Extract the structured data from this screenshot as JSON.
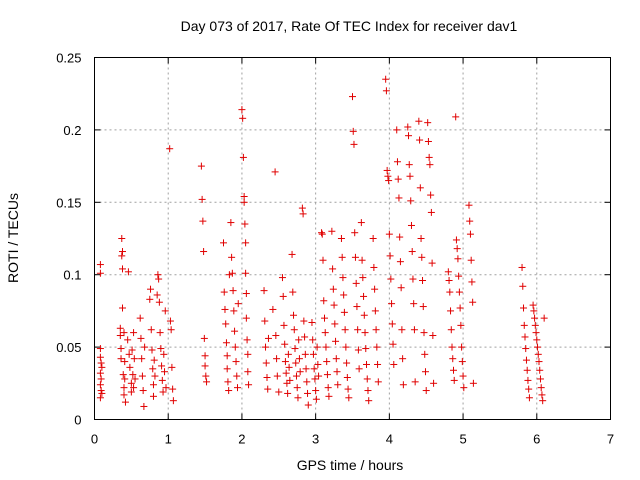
{
  "chart_data": {
    "type": "scatter",
    "title": "Day 073 of 2017, Rate Of TEC Index for receiver dav1",
    "xlabel": "GPS time / hours",
    "ylabel": "ROTI / TECUs",
    "xlim": [
      0,
      7
    ],
    "ylim": [
      0,
      0.25
    ],
    "xticks": [
      "0",
      "1",
      "2",
      "3",
      "4",
      "5",
      "6",
      "7"
    ],
    "yticks": [
      "0",
      "0.05",
      "0.1",
      "0.15",
      "0.2",
      "0.25"
    ],
    "grid": true,
    "marker": "plus",
    "color": "#e00000",
    "series": [
      {
        "x": [
          0.08,
          0.08,
          0.08,
          0.08,
          0.08,
          0.08,
          0.08,
          0.09,
          0.09,
          0.09,
          0.1,
          0.1,
          0.35,
          0.35,
          0.36,
          0.36,
          0.37,
          0.37,
          0.38,
          0.38,
          0.38,
          0.39,
          0.4,
          0.4,
          0.4,
          0.41,
          0.41,
          0.42,
          0.45,
          0.46,
          0.47,
          0.48,
          0.5,
          0.5,
          0.51,
          0.52,
          0.53,
          0.53,
          0.54,
          0.55,
          0.62,
          0.63,
          0.64,
          0.65,
          0.66,
          0.67,
          0.68,
          0.75,
          0.76,
          0.77,
          0.78,
          0.79,
          0.8,
          0.8,
          0.81,
          0.82,
          0.85,
          0.86,
          0.87,
          0.88,
          0.89,
          0.9,
          0.91,
          0.92,
          0.93,
          0.94,
          0.95,
          0.96,
          0.97,
          1.02,
          1.03,
          1.04,
          1.05,
          1.06,
          1.07,
          1.45,
          1.46,
          1.47,
          1.48,
          1.49,
          1.5,
          1.5,
          1.51,
          1.52,
          1.75,
          1.76,
          1.77,
          1.78,
          1.79,
          1.8,
          1.8,
          1.81,
          1.82,
          1.83,
          1.85,
          1.86,
          1.87,
          1.88,
          1.89,
          1.9,
          1.91,
          1.92,
          1.93,
          1.94,
          1.95,
          2.0,
          2.01,
          2.02,
          2.03,
          2.03,
          2.04,
          2.05,
          2.05,
          2.06,
          2.06,
          2.07,
          2.08,
          2.08,
          2.09,
          2.3,
          2.31,
          2.32,
          2.33,
          2.34,
          2.35,
          2.36,
          2.42,
          2.45,
          2.46,
          2.47,
          2.48,
          2.5,
          2.55,
          2.56,
          2.57,
          2.58,
          2.59,
          2.6,
          2.61,
          2.62,
          2.63,
          2.64,
          2.65,
          2.68,
          2.69,
          2.7,
          2.71,
          2.72,
          2.73,
          2.74,
          2.75,
          2.76,
          2.77,
          2.78,
          2.79,
          2.82,
          2.83,
          2.84,
          2.85,
          2.86,
          2.87,
          2.88,
          2.89,
          2.9,
          2.95,
          2.96,
          2.97,
          2.98,
          2.99,
          3.0,
          3.01,
          3.02,
          3.03,
          3.04,
          3.08,
          3.09,
          3.1,
          3.11,
          3.12,
          3.13,
          3.14,
          3.15,
          3.16,
          3.17,
          3.18,
          3.22,
          3.23,
          3.24,
          3.25,
          3.26,
          3.27,
          3.28,
          3.29,
          3.3,
          3.35,
          3.36,
          3.37,
          3.38,
          3.39,
          3.4,
          3.41,
          3.42,
          3.43,
          3.44,
          3.45,
          3.5,
          3.51,
          3.52,
          3.53,
          3.54,
          3.55,
          3.56,
          3.57,
          3.58,
          3.59,
          3.62,
          3.63,
          3.64,
          3.65,
          3.66,
          3.67,
          3.68,
          3.69,
          3.7,
          3.71,
          3.72,
          3.78,
          3.79,
          3.8,
          3.81,
          3.82,
          3.83,
          3.84,
          3.85,
          3.95,
          3.96,
          3.97,
          3.98,
          3.99,
          4.0,
          4.01,
          4.02,
          4.03,
          4.04,
          4.05,
          4.06,
          4.1,
          4.11,
          4.12,
          4.13,
          4.14,
          4.15,
          4.16,
          4.17,
          4.18,
          4.19,
          4.25,
          4.26,
          4.27,
          4.28,
          4.29,
          4.3,
          4.31,
          4.32,
          4.33,
          4.34,
          4.35,
          4.4,
          4.41,
          4.42,
          4.43,
          4.44,
          4.45,
          4.46,
          4.47,
          4.48,
          4.49,
          4.5,
          4.52,
          4.53,
          4.54,
          4.55,
          4.56,
          4.57,
          4.58,
          4.59,
          4.6,
          4.8,
          4.81,
          4.82,
          4.83,
          4.84,
          4.85,
          4.86,
          4.87,
          4.88,
          4.9,
          4.91,
          4.92,
          4.93,
          4.94,
          4.95,
          4.96,
          4.97,
          4.98,
          4.99,
          5.0,
          5.01,
          5.08,
          5.09,
          5.1,
          5.11,
          5.12,
          5.13,
          5.14,
          5.8,
          5.81,
          5.82,
          5.83,
          5.84,
          5.85,
          5.86,
          5.87,
          5.88,
          5.89,
          5.9,
          5.95,
          5.96,
          5.97,
          5.98,
          5.99,
          6.0,
          6.01,
          6.02,
          6.03,
          6.04,
          6.05,
          6.06,
          6.07,
          6.08,
          6.1
        ],
        "y": [
          0.107,
          0.101,
          0.049,
          0.043,
          0.032,
          0.024,
          0.015,
          0.039,
          0.02,
          0.028,
          0.036,
          0.018,
          0.063,
          0.058,
          0.049,
          0.042,
          0.125,
          0.113,
          0.116,
          0.104,
          0.077,
          0.031,
          0.022,
          0.017,
          0.06,
          0.04,
          0.028,
          0.012,
          0.055,
          0.102,
          0.045,
          0.036,
          0.025,
          0.019,
          0.048,
          0.031,
          0.06,
          0.022,
          0.042,
          0.028,
          0.07,
          0.056,
          0.042,
          0.03,
          0.02,
          0.009,
          0.05,
          0.083,
          0.09,
          0.062,
          0.048,
          0.035,
          0.024,
          0.016,
          0.041,
          0.03,
          0.086,
          0.1,
          0.097,
          0.081,
          0.06,
          0.049,
          0.037,
          0.027,
          0.019,
          0.045,
          0.033,
          0.075,
          0.022,
          0.187,
          0.068,
          0.062,
          0.036,
          0.021,
          0.013,
          0.175,
          0.152,
          0.137,
          0.116,
          0.056,
          0.044,
          0.037,
          0.03,
          0.026,
          0.122,
          0.088,
          0.076,
          0.066,
          0.053,
          0.044,
          0.035,
          0.026,
          0.02,
          0.1,
          0.136,
          0.112,
          0.101,
          0.089,
          0.075,
          0.061,
          0.05,
          0.04,
          0.03,
          0.022,
          0.08,
          0.214,
          0.208,
          0.181,
          0.154,
          0.15,
          0.135,
          0.122,
          0.101,
          0.087,
          0.07,
          0.055,
          0.045,
          0.033,
          0.024,
          0.089,
          0.068,
          0.05,
          0.039,
          0.029,
          0.021,
          0.056,
          0.076,
          0.171,
          0.058,
          0.042,
          0.03,
          0.019,
          0.098,
          0.085,
          0.065,
          0.052,
          0.04,
          0.032,
          0.025,
          0.018,
          0.045,
          0.036,
          0.027,
          0.114,
          0.088,
          0.072,
          0.062,
          0.049,
          0.039,
          0.03,
          0.022,
          0.015,
          0.055,
          0.042,
          0.033,
          0.146,
          0.142,
          0.068,
          0.057,
          0.045,
          0.035,
          0.026,
          0.018,
          0.01,
          0.067,
          0.055,
          0.045,
          0.035,
          0.028,
          0.02,
          0.014,
          0.05,
          0.038,
          0.03,
          0.129,
          0.128,
          0.11,
          0.082,
          0.07,
          0.06,
          0.05,
          0.04,
          0.031,
          0.022,
          0.016,
          0.13,
          0.104,
          0.09,
          0.079,
          0.066,
          0.054,
          0.042,
          0.033,
          0.024,
          0.125,
          0.112,
          0.098,
          0.086,
          0.074,
          0.062,
          0.05,
          0.039,
          0.029,
          0.021,
          0.015,
          0.223,
          0.199,
          0.19,
          0.129,
          0.112,
          0.094,
          0.078,
          0.062,
          0.048,
          0.035,
          0.136,
          0.11,
          0.098,
          0.085,
          0.072,
          0.06,
          0.049,
          0.038,
          0.028,
          0.02,
          0.013,
          0.125,
          0.105,
          0.09,
          0.075,
          0.062,
          0.05,
          0.038,
          0.026,
          0.235,
          0.227,
          0.172,
          0.168,
          0.165,
          0.128,
          0.113,
          0.097,
          0.08,
          0.066,
          0.052,
          0.038,
          0.2,
          0.178,
          0.166,
          0.153,
          0.126,
          0.109,
          0.091,
          0.062,
          0.042,
          0.024,
          0.202,
          0.196,
          0.176,
          0.168,
          0.151,
          0.134,
          0.116,
          0.097,
          0.08,
          0.062,
          0.026,
          0.206,
          0.193,
          0.16,
          0.125,
          0.112,
          0.096,
          0.078,
          0.06,
          0.045,
          0.033,
          0.02,
          0.205,
          0.192,
          0.181,
          0.176,
          0.155,
          0.143,
          0.108,
          0.058,
          0.025,
          0.102,
          0.096,
          0.088,
          0.075,
          0.062,
          0.05,
          0.042,
          0.034,
          0.027,
          0.209,
          0.124,
          0.118,
          0.111,
          0.099,
          0.088,
          0.077,
          0.065,
          0.05,
          0.04,
          0.03,
          0.022,
          0.148,
          0.137,
          0.128,
          0.11,
          0.095,
          0.081,
          0.025,
          0.105,
          0.092,
          0.077,
          0.065,
          0.057,
          0.049,
          0.041,
          0.034,
          0.027,
          0.021,
          0.015,
          0.079,
          0.075,
          0.07,
          0.065,
          0.06,
          0.055,
          0.05,
          0.045,
          0.04,
          0.034,
          0.028,
          0.022,
          0.017,
          0.013,
          0.07
        ]
      }
    ]
  }
}
